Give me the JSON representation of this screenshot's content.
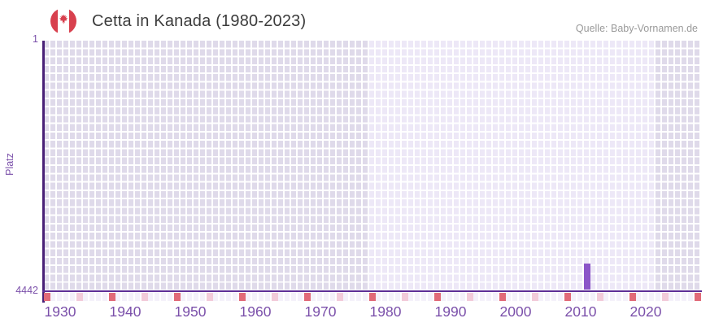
{
  "header": {
    "title": "Cetta in Kanada (1980-2023)",
    "source": "Quelle: Baby-Vornamen.de"
  },
  "chart_data": {
    "type": "bar",
    "title": "Cetta in Kanada (1980-2023)",
    "ylabel": "Platz",
    "y_axis": {
      "top_tick": "1",
      "bottom_tick": "4442",
      "min": 1,
      "max": 4442,
      "inverted": true
    },
    "x_axis": {
      "first_year": 1928,
      "last_year": 2028,
      "tick_labels": [
        "1930",
        "1940",
        "1950",
        "1960",
        "1970",
        "1980",
        "1990",
        "2000",
        "2010",
        "2020"
      ]
    },
    "highlight_band": {
      "start_year": 1978,
      "end_year": 2021
    },
    "series": [
      {
        "name": "Platz",
        "points": [
          {
            "year": 2011,
            "rank": 3945
          }
        ]
      }
    ],
    "bottom_marks": {
      "red_years": [
        1928,
        1938,
        1948,
        1958,
        1968,
        1978,
        1988,
        1998,
        2008,
        2018,
        2028
      ],
      "pink_years": [
        1933,
        1943,
        1953,
        1963,
        1973,
        1983,
        1993,
        2003,
        2013,
        2023
      ]
    },
    "grid": {
      "rows": 30,
      "legend": "off"
    },
    "colors": {
      "bar": "#8b55c8",
      "cell_dark": "#dfdaea",
      "cell_light": "#ede8f7",
      "cell_gap": "#ffffff",
      "bottom_row": "#f4f1fa",
      "mark_red": "#e16a78",
      "mark_pink": "#f2cbd9",
      "axis_h": "#5e2f96",
      "axis_v": "#4a2178",
      "tick_text": "#7b50aa",
      "title_text": "#3c3c3c",
      "source_text": "#9a9a9a",
      "flag_red": "#d8404e"
    }
  }
}
